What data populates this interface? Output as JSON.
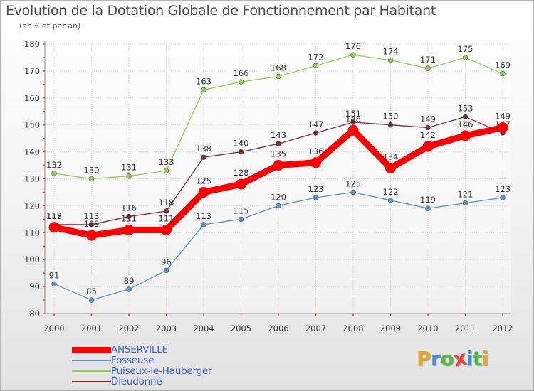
{
  "title": "Evolution de la Dotation Globale de Fonctionnement par Habitant",
  "subtitle": "(en € et par an)",
  "chart_data": {
    "type": "line",
    "title": "Evolution de la Dotation Globale de Fonctionnement par Habitant",
    "subtitle": "(en € et par an)",
    "xlabel": "",
    "ylabel": "",
    "categories": [
      "2000",
      "2001",
      "2002",
      "2003",
      "2004",
      "2005",
      "2006",
      "2007",
      "2008",
      "2009",
      "2010",
      "2011",
      "2012"
    ],
    "ylim": [
      80,
      180
    ],
    "yticks": [
      80,
      90,
      100,
      110,
      120,
      130,
      140,
      150,
      160,
      170,
      180
    ],
    "grid": true,
    "legend_position": "bottom-left",
    "series": [
      {
        "name": "Puiseux-le-Hauberger",
        "color": "#8fd14f",
        "values": [
          132,
          130,
          131,
          133,
          163,
          166,
          168,
          172,
          176,
          174,
          171,
          175,
          169
        ]
      },
      {
        "name": "Dieudonné",
        "color": "#7a2e33",
        "values": [
          113,
          113,
          116,
          118,
          138,
          140,
          143,
          147,
          151,
          150,
          149,
          153,
          147
        ]
      },
      {
        "name": "Fosseuse",
        "color": "#5b93cf",
        "values": [
          91,
          85,
          89,
          96,
          113,
          115,
          120,
          123,
          125,
          122,
          119,
          121,
          123
        ]
      },
      {
        "name": "ANSERVILLE",
        "color": "#ff0000",
        "values": [
          112,
          109,
          111,
          111,
          125,
          128,
          135,
          136,
          148,
          134,
          142,
          146,
          149
        ]
      }
    ]
  },
  "legend": [
    {
      "label": "ANSERVILLE",
      "color": "#ff0000"
    },
    {
      "label": "Fosseuse",
      "color": "#5b93cf"
    },
    {
      "label": "Puiseux-le-Hauberger",
      "color": "#8fd14f"
    },
    {
      "label": "Dieudonné",
      "color": "#7a2e33"
    }
  ],
  "logo": {
    "letters": [
      "P",
      "r",
      "o",
      "x",
      "i",
      "t",
      "i"
    ],
    "colors": [
      "#e8a52b",
      "#3e8fd8",
      "#52b848",
      "#e8433a",
      "#3e8fd8",
      "#52b848",
      "#e8a52b"
    ]
  }
}
